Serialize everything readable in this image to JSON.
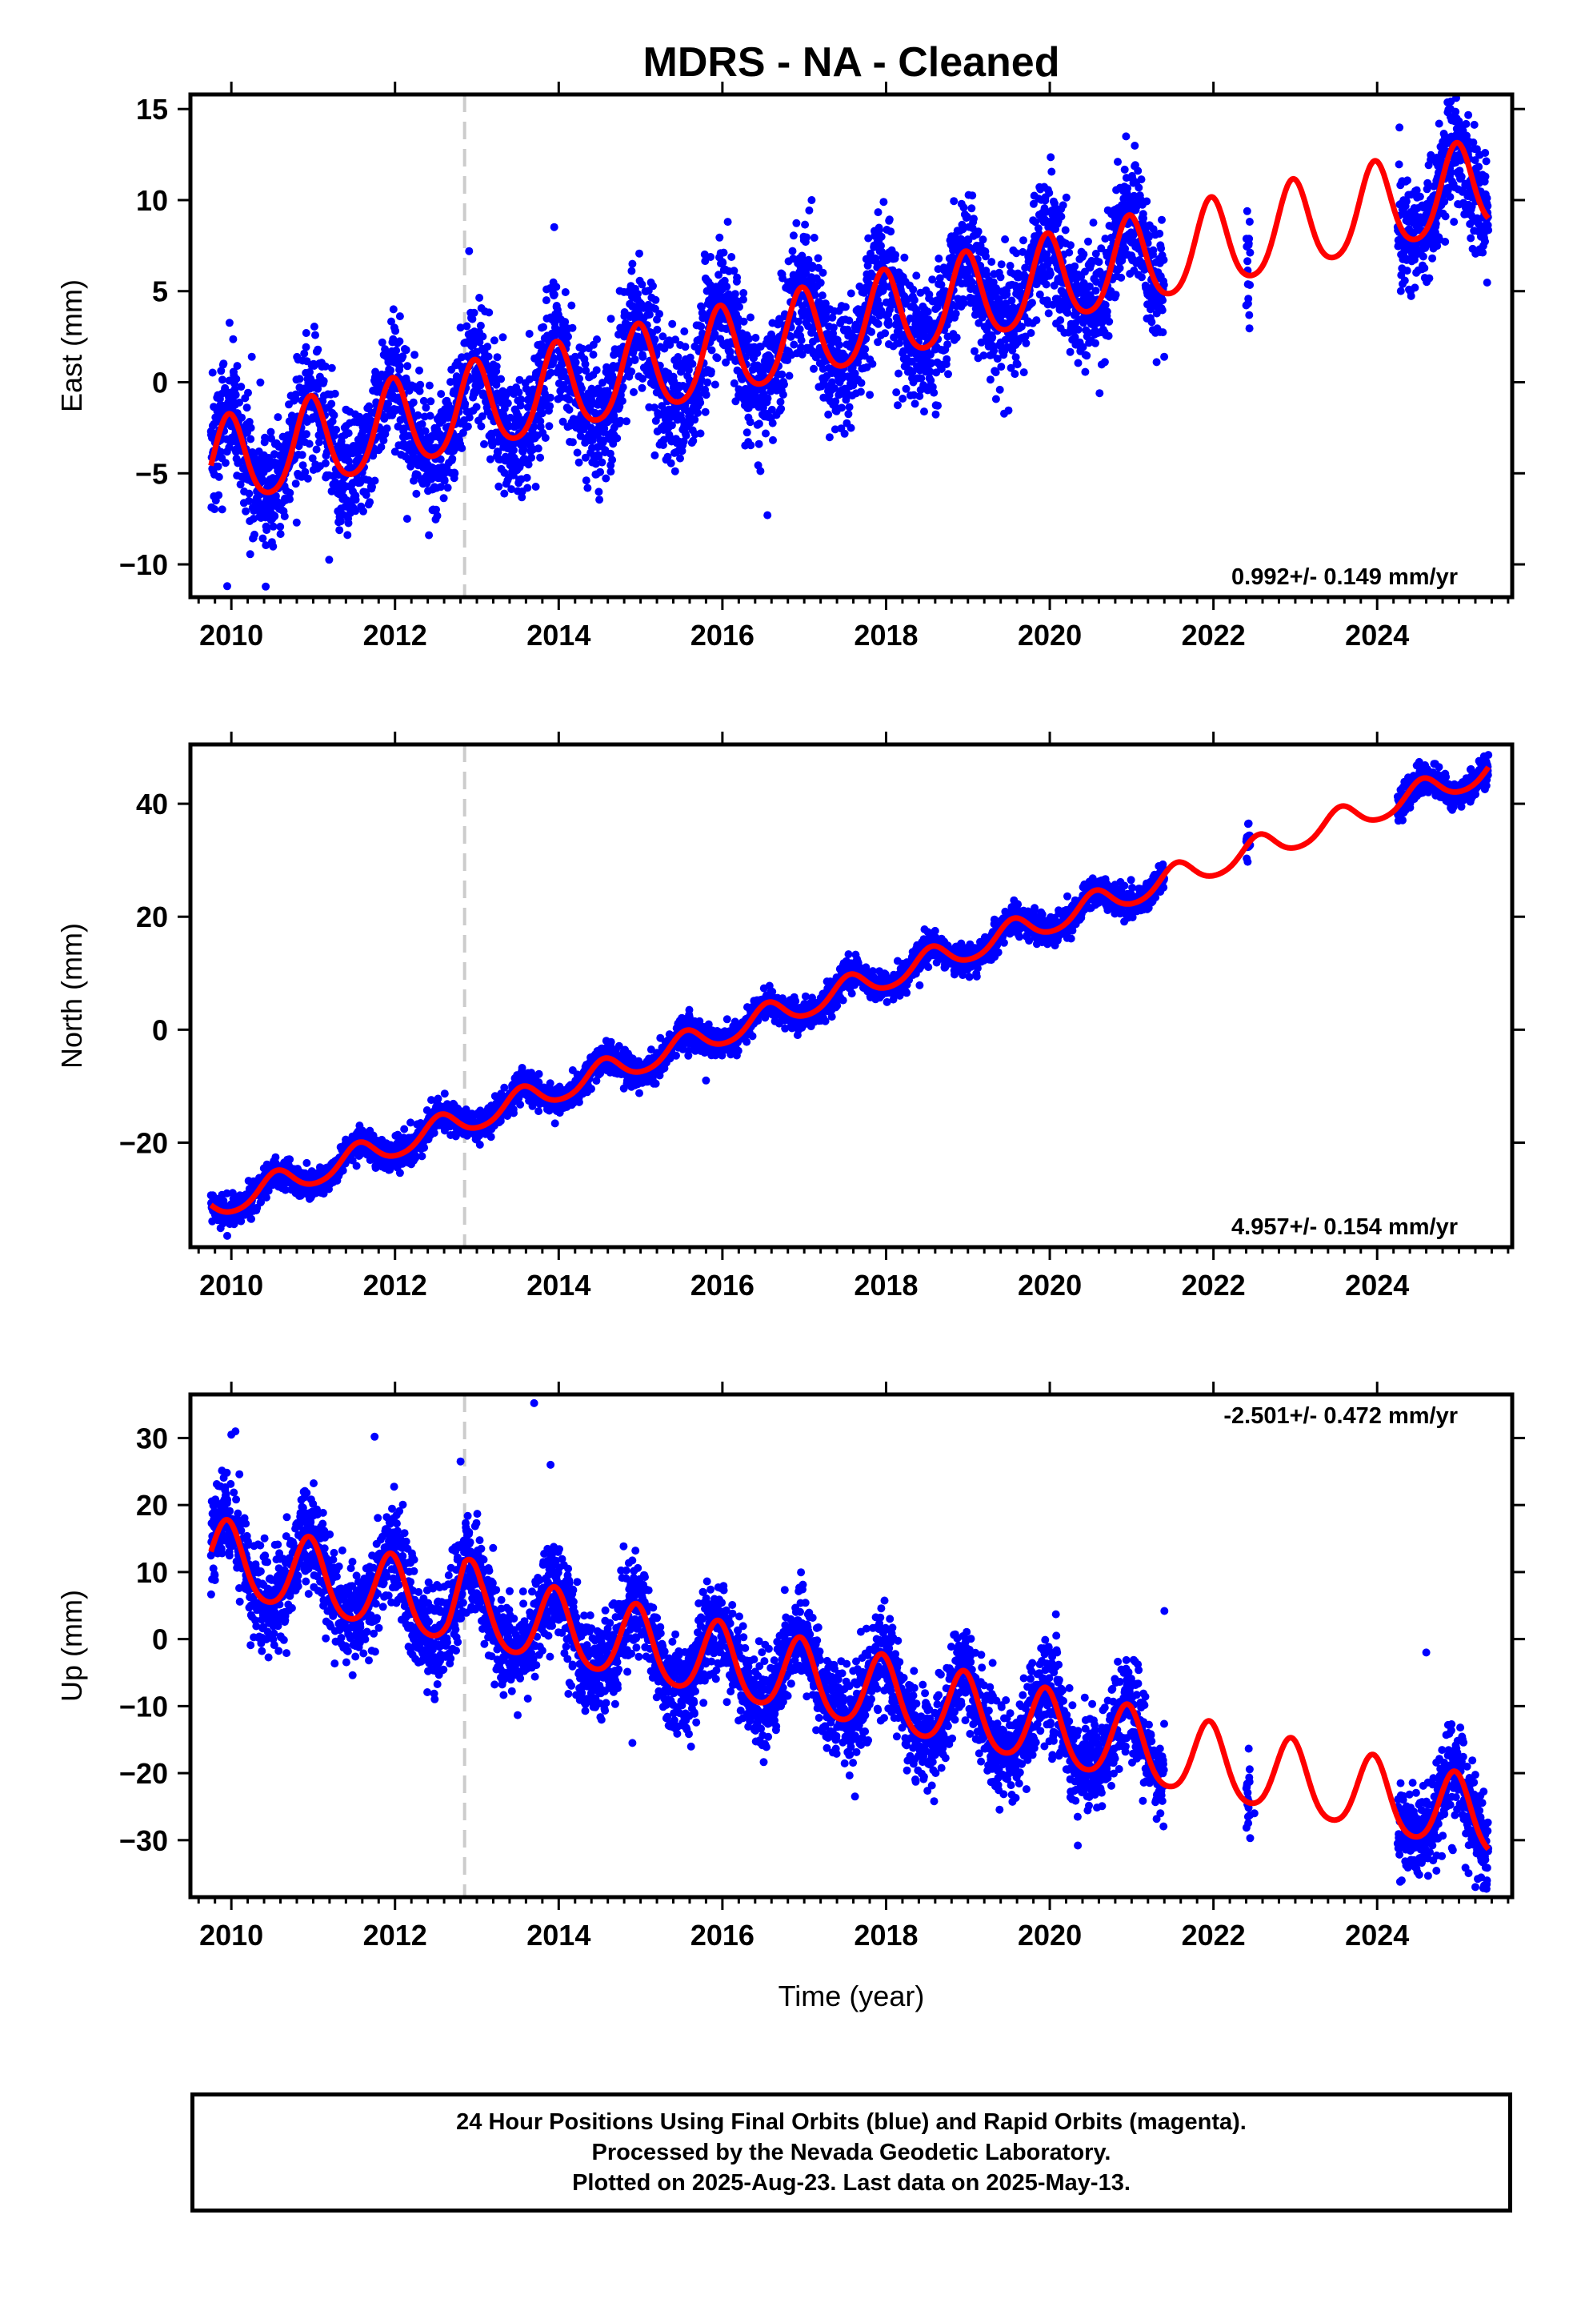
{
  "chart_data": [
    {
      "type": "scatter",
      "title": "MDRS  - NA - Cleaned",
      "ylabel": "East (mm)",
      "xlabel": "",
      "xlim": [
        2009.5,
        2025.65
      ],
      "ylim": [
        -11.8,
        15.8
      ],
      "xticks": [
        2010,
        2012,
        2014,
        2016,
        2018,
        2020,
        2022,
        2024
      ],
      "xtick_labels": [
        "2010",
        "2012",
        "2014",
        "2016",
        "2018",
        "2020",
        "2022",
        "2024"
      ],
      "yticks": [
        -10,
        -5,
        0,
        5,
        10,
        15
      ],
      "ytick_labels": [
        "−10",
        "−5",
        "0",
        "5",
        "10",
        "15"
      ],
      "marker_line": 2012.85,
      "rate_label": "0.992+/- 0.149 mm/yr",
      "rate_position": "bottom-right",
      "grid": false,
      "data_segments": [
        [
          2009.75,
          2021.4
        ],
        [
          2022.4,
          2022.45
        ],
        [
          2024.25,
          2025.36
        ]
      ],
      "model": {
        "start": 2009.75,
        "end": 2025.36,
        "intercept": -4.7,
        "rate": 0.992,
        "annual_amplitude": 2.4,
        "annual_phase_year": 2009.97,
        "semiannual_amplitude": 0.35
      },
      "scatter_sigma": 1.7,
      "outliers": [
        [
          2009.95,
          -11.2
        ],
        [
          2010.25,
          1.4
        ],
        [
          2012.8,
          3.0
        ],
        [
          2014.9,
          6.5
        ],
        [
          2016.0,
          6.6
        ],
        [
          2016.55,
          -7.3
        ],
        [
          2020.9,
          10.5
        ]
      ],
      "series": [
        {
          "name": "",
          "color": "#0000ff",
          "kind": "points"
        },
        {
          "name": "",
          "color": "#ff0000",
          "kind": "line"
        }
      ]
    },
    {
      "type": "scatter",
      "title": "",
      "ylabel": "North (mm)",
      "xlabel": "",
      "xlim": [
        2009.5,
        2025.65
      ],
      "ylim": [
        -38.5,
        50.5
      ],
      "xticks": [
        2010,
        2012,
        2014,
        2016,
        2018,
        2020,
        2022,
        2024
      ],
      "xtick_labels": [
        "2010",
        "2012",
        "2014",
        "2016",
        "2018",
        "2020",
        "2022",
        "2024"
      ],
      "yticks": [
        -20,
        0,
        20,
        40
      ],
      "ytick_labels": [
        "−20",
        "0",
        "20",
        "40"
      ],
      "marker_line": 2012.85,
      "rate_label": "4.957+/- 0.154 mm/yr",
      "rate_position": "bottom-right",
      "grid": false,
      "data_segments": [
        [
          2009.75,
          2021.4
        ],
        [
          2022.4,
          2022.45
        ],
        [
          2024.25,
          2025.36
        ]
      ],
      "model": {
        "start": 2009.75,
        "end": 2025.36,
        "intercept": -31.5,
        "rate": 4.957,
        "annual_amplitude": 2.3,
        "annual_phase_year": 2010.55,
        "semiannual_amplitude": 0.3
      },
      "scatter_sigma": 1.3,
      "outliers": [
        [
          2009.95,
          -36.5
        ],
        [
          2015.8,
          -9.0
        ],
        [
          2018.6,
          17.5
        ],
        [
          2022.43,
          36.5
        ]
      ],
      "series": [
        {
          "name": "",
          "color": "#0000ff",
          "kind": "points"
        },
        {
          "name": "",
          "color": "#ff0000",
          "kind": "line"
        }
      ]
    },
    {
      "type": "scatter",
      "title": "",
      "ylabel": "Up (mm)",
      "xlabel": "Time (year)",
      "xlim": [
        2009.5,
        2025.65
      ],
      "ylim": [
        -38.5,
        36.5
      ],
      "xticks": [
        2010,
        2012,
        2014,
        2016,
        2018,
        2020,
        2022,
        2024
      ],
      "xtick_labels": [
        "2010",
        "2012",
        "2014",
        "2016",
        "2018",
        "2020",
        "2022",
        "2024"
      ],
      "yticks": [
        -30,
        -20,
        -10,
        0,
        10,
        20,
        30
      ],
      "ytick_labels": [
        "−30",
        "−20",
        "−10",
        "0",
        "10",
        "20",
        "30"
      ],
      "marker_line": 2012.85,
      "rate_label": "-2.501+/- 0.472 mm/yr",
      "rate_position": "top-right",
      "grid": false,
      "data_segments": [
        [
          2009.75,
          2021.4
        ],
        [
          2022.4,
          2022.45
        ],
        [
          2024.25,
          2025.36
        ]
      ],
      "model": {
        "start": 2009.75,
        "end": 2025.36,
        "intercept": 12.0,
        "rate": -2.501,
        "annual_amplitude": 5.5,
        "annual_phase_year": 2009.95,
        "semiannual_amplitude": 0.8,
        "offset_at": 2012.85,
        "offset_peak": 2.5
      },
      "scatter_sigma": 3.6,
      "outliers": [
        [
          2010.0,
          30.5
        ],
        [
          2010.05,
          31.0
        ],
        [
          2011.75,
          30.2
        ],
        [
          2012.8,
          26.5
        ],
        [
          2013.7,
          35.2
        ],
        [
          2013.9,
          26.0
        ],
        [
          2014.9,
          -15.5
        ],
        [
          2022.5,
          -26.0
        ],
        [
          2024.3,
          -36.0
        ],
        [
          2024.6,
          -2.0
        ],
        [
          2025.2,
          -37.0
        ],
        [
          2021.4,
          4.2
        ]
      ],
      "series": [
        {
          "name": "",
          "color": "#0000ff",
          "kind": "points"
        },
        {
          "name": "",
          "color": "#ff0000",
          "kind": "line"
        }
      ]
    }
  ],
  "caption": {
    "line1": "24 Hour Positions Using Final Orbits (blue) and Rapid Orbits (magenta).",
    "line2": "Processed by the Nevada Geodetic Laboratory.",
    "line3": "Plotted on 2025-Aug-23. Last data on 2025-May-13."
  },
  "colors": {
    "points": "#0000ff",
    "model": "#ff0000",
    "marker_line": "#cccccc",
    "frame": "#000000"
  }
}
